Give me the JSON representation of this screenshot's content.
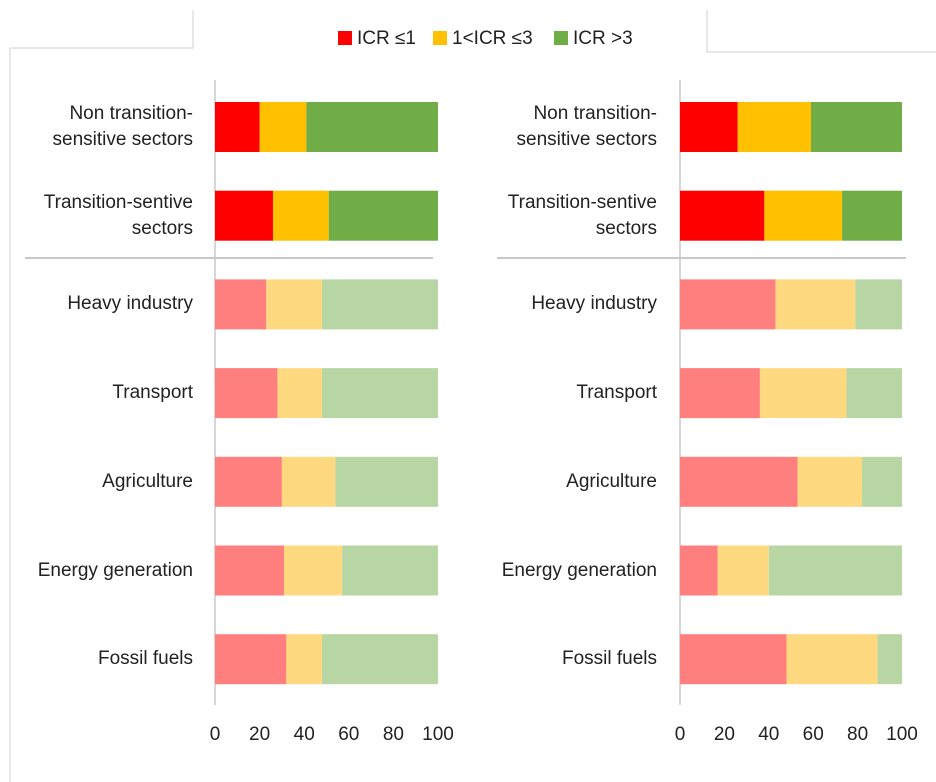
{
  "chart_data": [
    {
      "type": "bar",
      "orientation": "horizontal",
      "stacked": true,
      "categories": [
        "Non transition-\nsensitive sectors",
        "Transition-sentive\nsectors",
        "Heavy industry",
        "Transport",
        "Agriculture",
        "Energy generation",
        "Fossil fuels"
      ],
      "series": [
        {
          "name": "ICR ≤1",
          "color": "#ff0000",
          "colors": [
            "#ff0000",
            "#ff0000",
            "#ff7f7f",
            "#ff7f7f",
            "#ff7f7f",
            "#ff7f7f",
            "#ff7f7f"
          ],
          "values": [
            20,
            26,
            23,
            28,
            30,
            31,
            32
          ]
        },
        {
          "name": "1<ICR ≤3",
          "color": "#ffc000",
          "colors": [
            "#ffc000",
            "#ffc000",
            "#ffd97f",
            "#ffd97f",
            "#ffd97f",
            "#ffd97f",
            "#ffd97f"
          ],
          "values": [
            21,
            25,
            25,
            20,
            24,
            26,
            16
          ]
        },
        {
          "name": "ICR >3",
          "color": "#70ad47",
          "colors": [
            "#70ad47",
            "#70ad47",
            "#b8d6a3",
            "#b8d6a3",
            "#b8d6a3",
            "#b8d6a3",
            "#b8d6a3"
          ],
          "values": [
            59,
            49,
            52,
            52,
            46,
            43,
            52
          ]
        }
      ],
      "xlim": [
        0,
        100
      ],
      "xticks": [
        0,
        20,
        40,
        60,
        80,
        100
      ]
    },
    {
      "type": "bar",
      "orientation": "horizontal",
      "stacked": true,
      "categories": [
        "Non transition-\nsensitive sectors",
        "Transition-sentive\nsectors",
        "Heavy industry",
        "Transport",
        "Agriculture",
        "Energy generation",
        "Fossil fuels"
      ],
      "series": [
        {
          "colors": [
            "#ff0000",
            "#ff0000",
            "#ff7f7f",
            "#ff7f7f",
            "#ff7f7f",
            "#ff7f7f",
            "#ff7f7f"
          ],
          "values": [
            26,
            38,
            43,
            36,
            53,
            17,
            48
          ]
        },
        {
          "colors": [
            "#ffc000",
            "#ffc000",
            "#ffd97f",
            "#ffd97f",
            "#ffd97f",
            "#ffd97f",
            "#ffd97f"
          ],
          "values": [
            33,
            35,
            36,
            39,
            29,
            23,
            41
          ]
        },
        {
          "colors": [
            "#70ad47",
            "#70ad47",
            "#b8d6a3",
            "#b8d6a3",
            "#b8d6a3",
            "#b8d6a3",
            "#b8d6a3"
          ],
          "values": [
            41,
            27,
            21,
            25,
            18,
            60,
            11
          ]
        }
      ],
      "xlim": [
        0,
        100
      ],
      "xticks": [
        0,
        20,
        40,
        60,
        80,
        100
      ]
    }
  ]
}
